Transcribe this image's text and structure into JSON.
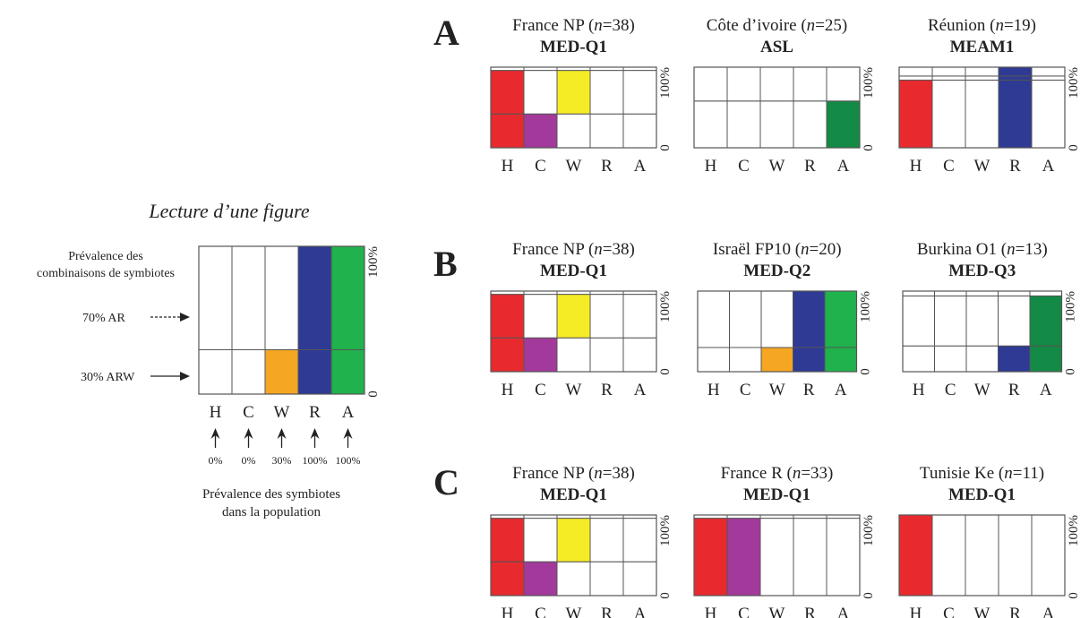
{
  "colors": {
    "H": "#e82a2e",
    "C": "#a33a9b",
    "W": "#f6ec26",
    "W_legend": "#f5a623",
    "R": "#2e3a94",
    "A_dark": "#138a45",
    "A_light": "#20b24c",
    "stroke": "#555555",
    "empty": "#ffffff"
  },
  "legend": {
    "title": "Lecture d’une figure",
    "combo_label_1": "Prévalence des",
    "combo_label_2": "combinaisons de symbiotes",
    "arrow_70": "70% AR",
    "arrow_30": "30% ARW",
    "symb_label_1": "Prévalence des symbiotes",
    "symb_label_2": "dans la population",
    "pct_labels": [
      "0%",
      "0%",
      "30%",
      "100%",
      "100%"
    ],
    "y_top": "100%",
    "y_bottom": "0"
  },
  "chart_data": [
    {
      "type": "bar",
      "panel": "legend",
      "categories": [
        "H",
        "C",
        "W",
        "R",
        "A"
      ],
      "segments": [
        {
          "value": 30,
          "fill": {
            "W": "W_legend",
            "R": "R",
            "A": "A_light"
          }
        },
        {
          "value": 70,
          "fill": {
            "R": "R",
            "A": "A_light"
          }
        }
      ],
      "ylim": [
        0,
        100
      ]
    },
    {
      "type": "bar",
      "panel": "A",
      "title": "France NP (n=38)",
      "title_parts": [
        "France NP (",
        "n",
        "=38)"
      ],
      "subtitle": "MED-Q1",
      "categories": [
        "H",
        "C",
        "W",
        "R",
        "A"
      ],
      "segments": [
        {
          "value": 42,
          "fill": {
            "H": "H",
            "C": "C"
          }
        },
        {
          "value": 54,
          "fill": {
            "H": "H",
            "W": "W"
          }
        },
        {
          "value": 4,
          "fill": {}
        }
      ],
      "ylim": [
        0,
        100
      ]
    },
    {
      "type": "bar",
      "panel": "A",
      "title": "Côte d’ivoire (n=25)",
      "title_parts": [
        "Côte d’ivoire (",
        "n",
        "=25)"
      ],
      "subtitle": "ASL",
      "categories": [
        "H",
        "C",
        "W",
        "R",
        "A"
      ],
      "segments": [
        {
          "value": 58,
          "fill": {
            "A": "A_dark"
          }
        },
        {
          "value": 42,
          "fill": {}
        }
      ],
      "ylim": [
        0,
        100
      ]
    },
    {
      "type": "bar",
      "panel": "A",
      "title": "Réunion (n=19)",
      "title_parts": [
        "Réunion (",
        "n",
        "=19)"
      ],
      "subtitle": "MEAM1",
      "categories": [
        "H",
        "C",
        "W",
        "R",
        "A"
      ],
      "segments": [
        {
          "value": 84,
          "fill": {
            "H": "H",
            "R": "R"
          }
        },
        {
          "value": 5,
          "fill": {
            "R": "R"
          }
        },
        {
          "value": 11,
          "fill": {
            "R": "R"
          }
        }
      ],
      "ylim": [
        0,
        100
      ]
    },
    {
      "type": "bar",
      "panel": "B",
      "title": "France NP (n=38)",
      "title_parts": [
        "France NP (",
        "n",
        "=38)"
      ],
      "subtitle": "MED-Q1",
      "categories": [
        "H",
        "C",
        "W",
        "R",
        "A"
      ],
      "segments": [
        {
          "value": 42,
          "fill": {
            "H": "H",
            "C": "C"
          }
        },
        {
          "value": 54,
          "fill": {
            "H": "H",
            "W": "W"
          }
        },
        {
          "value": 4,
          "fill": {}
        }
      ],
      "ylim": [
        0,
        100
      ]
    },
    {
      "type": "bar",
      "panel": "B",
      "title": "Israël FP10 (n=20)",
      "title_parts": [
        "Israël FP10 (",
        "n",
        "=20)"
      ],
      "subtitle": "MED-Q2",
      "categories": [
        "H",
        "C",
        "W",
        "R",
        "A"
      ],
      "segments": [
        {
          "value": 30,
          "fill": {
            "W": "W_legend",
            "R": "R",
            "A": "A_light"
          }
        },
        {
          "value": 70,
          "fill": {
            "R": "R",
            "A": "A_light"
          }
        }
      ],
      "ylim": [
        0,
        100
      ]
    },
    {
      "type": "bar",
      "panel": "B",
      "title": "Burkina O1 (n=13)",
      "title_parts": [
        "Burkina O1 (",
        "n",
        "=13)"
      ],
      "subtitle": "MED-Q3",
      "categories": [
        "H",
        "C",
        "W",
        "R",
        "A"
      ],
      "segments": [
        {
          "value": 32,
          "fill": {
            "R": "R",
            "A": "A_dark"
          }
        },
        {
          "value": 62,
          "fill": {
            "A": "A_dark"
          }
        },
        {
          "value": 6,
          "fill": {}
        }
      ],
      "ylim": [
        0,
        100
      ]
    },
    {
      "type": "bar",
      "panel": "C",
      "title": "France NP (n=38)",
      "title_parts": [
        "France NP (",
        "n",
        "=38)"
      ],
      "subtitle": "MED-Q1",
      "categories": [
        "H",
        "C",
        "W",
        "R",
        "A"
      ],
      "segments": [
        {
          "value": 42,
          "fill": {
            "H": "H",
            "C": "C"
          }
        },
        {
          "value": 54,
          "fill": {
            "H": "H",
            "W": "W"
          }
        },
        {
          "value": 4,
          "fill": {}
        }
      ],
      "ylim": [
        0,
        100
      ]
    },
    {
      "type": "bar",
      "panel": "C",
      "title": "France R (n=33)",
      "title_parts": [
        "France R (",
        "n",
        "=33)"
      ],
      "subtitle": "MED-Q1",
      "categories": [
        "H",
        "C",
        "W",
        "R",
        "A"
      ],
      "segments": [
        {
          "value": 96,
          "fill": {
            "H": "H",
            "C": "C"
          }
        },
        {
          "value": 4,
          "fill": {}
        }
      ],
      "ylim": [
        0,
        100
      ]
    },
    {
      "type": "bar",
      "panel": "C",
      "title": "Tunisie Ke (n=11)",
      "title_parts": [
        "Tunisie Ke (",
        "n",
        "=11)"
      ],
      "subtitle": "MED-Q1",
      "categories": [
        "H",
        "C",
        "W",
        "R",
        "A"
      ],
      "segments": [
        {
          "value": 100,
          "fill": {
            "H": "H"
          }
        }
      ],
      "ylim": [
        0,
        100
      ]
    }
  ]
}
